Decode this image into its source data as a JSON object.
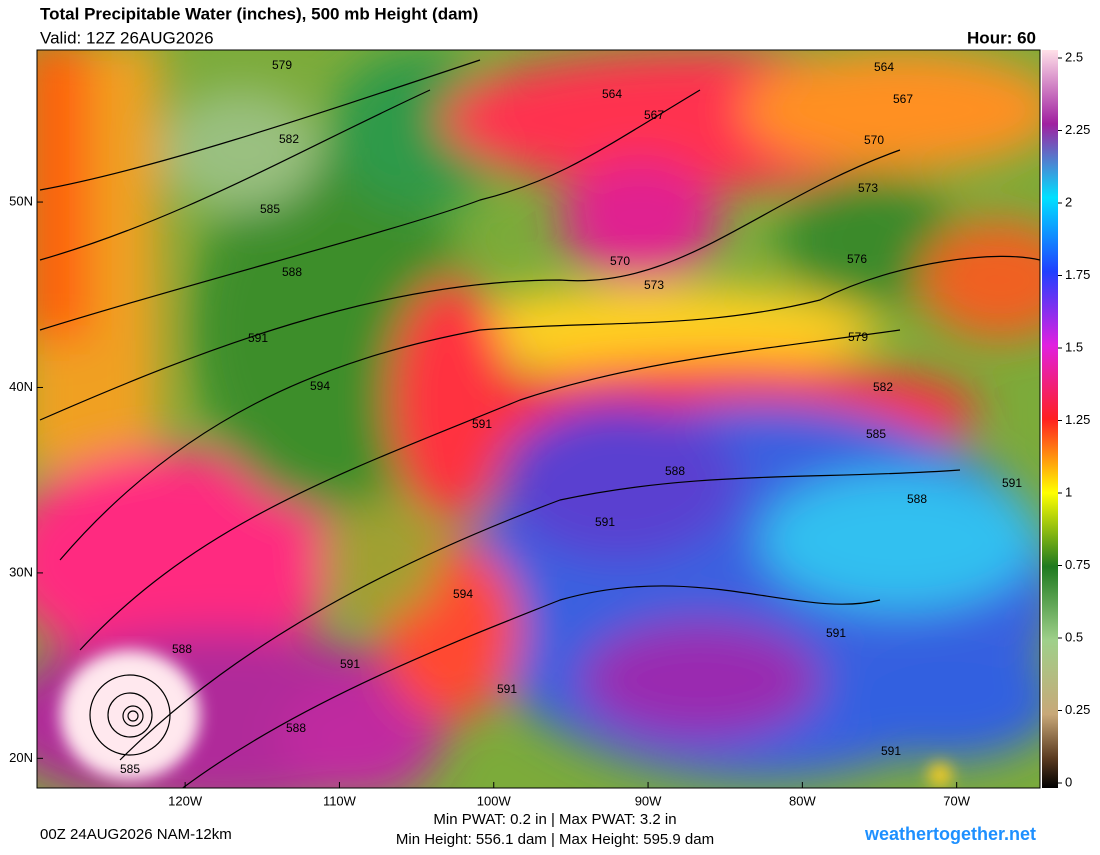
{
  "header": {
    "title": "Total Precipitable Water (inches), 500 mb Height (dam)",
    "valid": "Valid: 12Z 26AUG2026",
    "hour": "Hour: 60"
  },
  "map": {
    "lonlim": [
      -129.6,
      -64.6
    ],
    "latlim": [
      18.4,
      58.2
    ],
    "lon_ticks": [
      {
        "value": -120,
        "label": "120W"
      },
      {
        "value": -110,
        "label": "110W"
      },
      {
        "value": -100,
        "label": "100W"
      },
      {
        "value": -90,
        "label": "90W"
      },
      {
        "value": -80,
        "label": "80W"
      },
      {
        "value": -70,
        "label": "70W"
      }
    ],
    "lat_ticks": [
      {
        "value": 50,
        "label": "50N"
      },
      {
        "value": 40,
        "label": "40N"
      },
      {
        "value": 30,
        "label": "30N"
      },
      {
        "value": 20,
        "label": "20N"
      }
    ],
    "contour_labels": [
      579,
      582,
      585,
      588,
      591,
      594,
      591,
      564,
      567,
      570,
      573,
      564,
      567,
      570,
      573,
      576,
      579,
      582,
      585,
      588,
      588,
      591,
      591,
      594,
      591,
      591,
      588,
      588,
      585,
      591,
      591
    ]
  },
  "colorbar": {
    "range": [
      0,
      2.5
    ],
    "ticks": [
      0,
      0.25,
      0.5,
      0.75,
      1,
      1.25,
      1.5,
      1.75,
      2,
      2.25,
      2.5
    ]
  },
  "footer": {
    "run": "00Z 24AUG2026 NAM-12km",
    "pwat": "Min PWAT:   0.2 in | Max PWAT:   3.2 in",
    "height": "Min Height: 556.1 dam | Max Height: 595.9 dam",
    "site": "weathertogether.net"
  }
}
